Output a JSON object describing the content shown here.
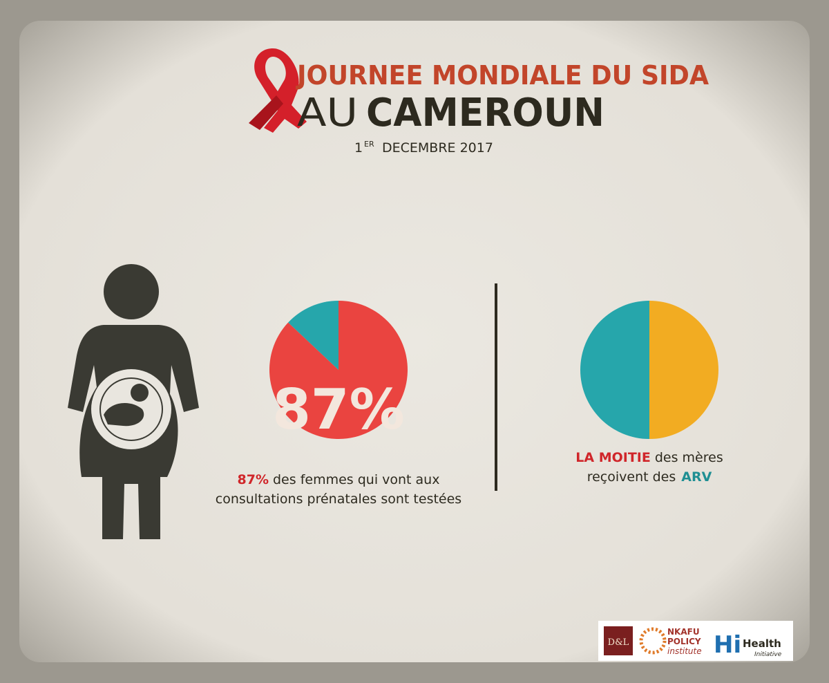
{
  "header": {
    "title_line1": "JOURNEE MONDIALE DU SIDA",
    "title_line2_prefix": "AU",
    "title_line2_main": "CAMEROUN",
    "date_day": "1",
    "date_sup": "ER",
    "date_rest": "DECEMBRE 2017"
  },
  "chart_data": [
    {
      "type": "pie",
      "values": [
        87,
        13
      ],
      "value_labels": [
        "87%",
        null
      ],
      "colors": [
        "#ea4440",
        "#26a6ab"
      ]
    },
    {
      "type": "pie",
      "values": [
        50,
        50
      ],
      "colors": [
        "#f2ac22",
        "#26a6ab"
      ]
    }
  ],
  "captions": {
    "left_highlight": "87%",
    "left_line1_rest": "des femmes qui vont aux",
    "left_line2": "consultations prénatales sont testées",
    "right_highlight": "LA MOITIE",
    "right_line1_rest": "des mères",
    "right_line2": "reçoivent des",
    "right_highlight2": "ARV"
  },
  "logos": {
    "dl": "D&L",
    "nkafu1": "NKAFU",
    "nkafu2": "POLICY",
    "nkafu3": "institute",
    "hi": "Hi",
    "health": "Health",
    "initiative": "Initiative"
  }
}
